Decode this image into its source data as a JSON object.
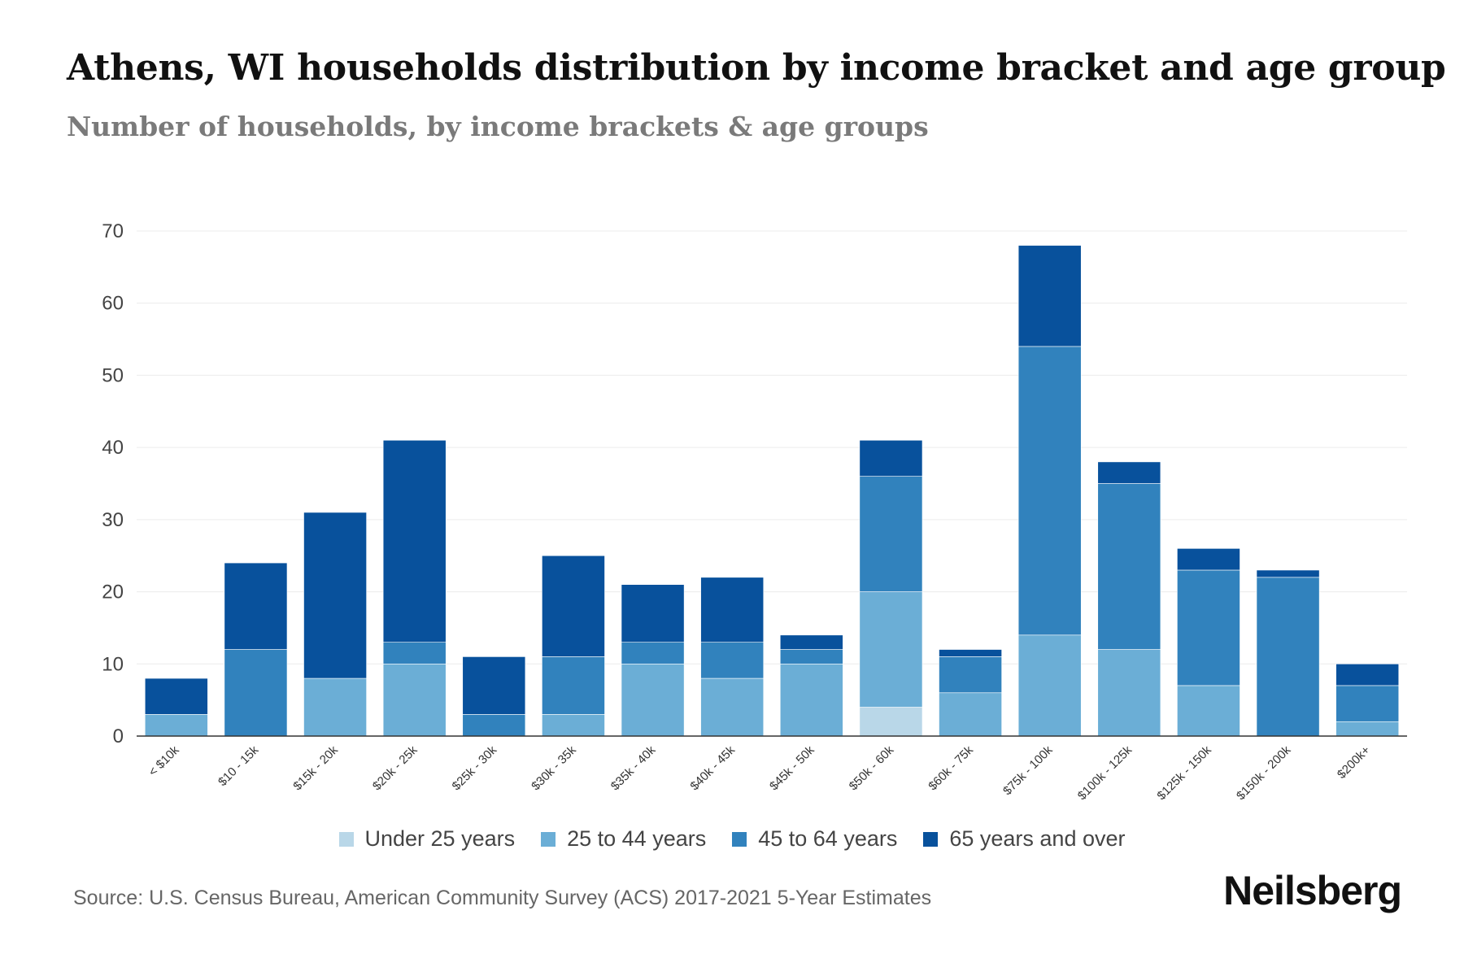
{
  "title": "Athens, WI households distribution by income bracket and age group",
  "subtitle": "Number of households, by income brackets & age groups",
  "source": "Source: U.S. Census Bureau, American Community Survey (ACS) 2017-2021 5-Year Estimates",
  "brand": "Neilsberg",
  "colors": {
    "Under 25 years": "#b9d7e8",
    "25 to 44 years": "#6baed6",
    "45 to 64 years": "#3182bd",
    "65 years and over": "#08519c",
    "grid": "#ececec",
    "axis": "#333333"
  },
  "chart_data": {
    "type": "bar",
    "stacked": true,
    "title": "Athens, WI households distribution by income bracket and age group",
    "subtitle": "Number of households, by income brackets & age groups",
    "xlabel": "",
    "ylabel": "",
    "ylim": [
      0,
      70
    ],
    "yticks": [
      0,
      10,
      20,
      30,
      40,
      50,
      60,
      70
    ],
    "grid": true,
    "legend_position": "bottom",
    "categories": [
      "< $10k",
      "$10 - 15k",
      "$15k - 20k",
      "$20k - 25k",
      "$25k - 30k",
      "$30k - 35k",
      "$35k - 40k",
      "$40k - 45k",
      "$45k - 50k",
      "$50k - 60k",
      "$60k - 75k",
      "$75k - 100k",
      "$100k - 125k",
      "$125k - 150k",
      "$150k - 200k",
      "$200k+"
    ],
    "series": [
      {
        "name": "Under 25 years",
        "values": [
          0,
          0,
          0,
          0,
          0,
          0,
          0,
          0,
          0,
          4,
          0,
          0,
          0,
          0,
          0,
          0
        ]
      },
      {
        "name": "25 to 44 years",
        "values": [
          3,
          0,
          8,
          10,
          0,
          3,
          10,
          8,
          10,
          16,
          6,
          14,
          12,
          7,
          0,
          2
        ]
      },
      {
        "name": "45 to 64 years",
        "values": [
          0,
          12,
          0,
          3,
          3,
          8,
          3,
          5,
          2,
          16,
          5,
          40,
          23,
          16,
          22,
          5
        ]
      },
      {
        "name": "65 years and over",
        "values": [
          5,
          12,
          23,
          28,
          8,
          14,
          8,
          9,
          2,
          5,
          1,
          14,
          3,
          3,
          1,
          3
        ]
      }
    ]
  }
}
